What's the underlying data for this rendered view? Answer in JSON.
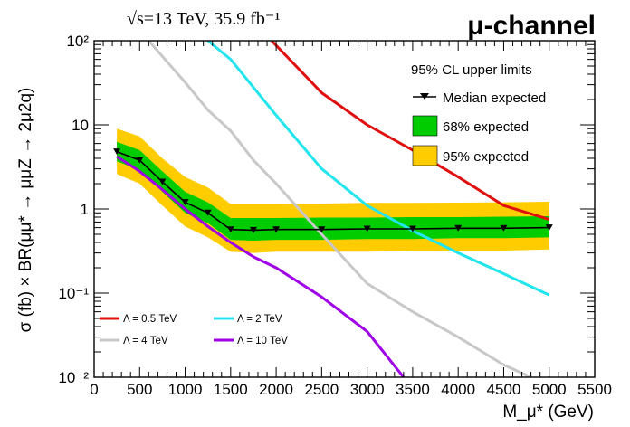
{
  "header": {
    "left_label": "√s=13 TeV, 35.9 fb⁻¹",
    "right_label": "μ-channel"
  },
  "chart_data": {
    "type": "line",
    "xlabel": "M_μ* (GeV)",
    "ylabel": "σ (fb) × BR(μμ* → μμZ → 2μ2q)",
    "xlim": [
      0,
      5500
    ],
    "ylim": [
      0.01,
      100
    ],
    "y_scale": "log",
    "x_ticks": [
      0,
      500,
      1000,
      1500,
      2000,
      2500,
      3000,
      3500,
      4000,
      4500,
      5000,
      5500
    ],
    "y_ticks": [
      {
        "value": 0.01,
        "label": "10⁻²"
      },
      {
        "value": 0.1,
        "label": "10⁻¹"
      },
      {
        "value": 1,
        "label": "1"
      },
      {
        "value": 10,
        "label": "10"
      },
      {
        "value": 100,
        "label": "10²"
      }
    ],
    "legend_title": "95% CL upper limits",
    "x": [
      250,
      500,
      750,
      1000,
      1250,
      1500,
      1750,
      2000,
      2500,
      3000,
      3500,
      4000,
      4500,
      5000
    ],
    "median_expected": [
      4.8,
      3.8,
      2.1,
      1.2,
      0.9,
      0.57,
      0.56,
      0.57,
      0.57,
      0.58,
      0.58,
      0.59,
      0.59,
      0.6
    ],
    "band_68": {
      "low": [
        3.7,
        2.9,
        1.6,
        0.9,
        0.68,
        0.43,
        0.42,
        0.43,
        0.43,
        0.44,
        0.44,
        0.45,
        0.45,
        0.46
      ],
      "high": [
        6.3,
        5.0,
        2.8,
        1.6,
        1.2,
        0.78,
        0.78,
        0.78,
        0.79,
        0.79,
        0.8,
        0.8,
        0.81,
        0.82
      ]
    },
    "band_95": {
      "low": [
        2.6,
        2.0,
        1.1,
        0.62,
        0.46,
        0.31,
        0.3,
        0.31,
        0.31,
        0.31,
        0.32,
        0.32,
        0.32,
        0.33
      ],
      "high": [
        9.0,
        7.3,
        4.0,
        2.4,
        1.8,
        1.15,
        1.15,
        1.15,
        1.16,
        1.18,
        1.18,
        1.19,
        1.2,
        1.22
      ]
    },
    "legend": [
      {
        "key": "median",
        "label": "Median expected"
      },
      {
        "key": "band68",
        "label": "68% expected"
      },
      {
        "key": "band95",
        "label": "95% expected"
      }
    ],
    "theory": [
      {
        "label": "Λ = 0.5 TeV",
        "color": "#e01010",
        "points": [
          [
            1950,
            100
          ],
          [
            2500,
            24
          ],
          [
            3000,
            10
          ],
          [
            3500,
            5.0
          ],
          [
            4000,
            2.4
          ],
          [
            4500,
            1.1
          ],
          [
            5000,
            0.75
          ]
        ]
      },
      {
        "label": "Λ = 2 TeV",
        "color": "#22e5ee",
        "points": [
          [
            1250,
            100
          ],
          [
            1500,
            60
          ],
          [
            2000,
            13
          ],
          [
            2500,
            3.0
          ],
          [
            3000,
            1.1
          ],
          [
            3500,
            0.55
          ],
          [
            4000,
            0.3
          ],
          [
            4500,
            0.17
          ],
          [
            5000,
            0.095
          ]
        ]
      },
      {
        "label": "Λ = 4 TeV",
        "color": "#c8c8c8",
        "points": [
          [
            600,
            100
          ],
          [
            1000,
            32
          ],
          [
            1250,
            15
          ],
          [
            1500,
            8.5
          ],
          [
            1750,
            3.8
          ],
          [
            2000,
            2.0
          ],
          [
            2500,
            0.5
          ],
          [
            3000,
            0.13
          ],
          [
            3500,
            0.06
          ],
          [
            4000,
            0.03
          ],
          [
            4500,
            0.014
          ],
          [
            4800,
            0.01
          ]
        ]
      },
      {
        "label": "Λ = 10 TeV",
        "color": "#a000e6",
        "points": [
          [
            250,
            4.2
          ],
          [
            500,
            2.8
          ],
          [
            750,
            1.7
          ],
          [
            1000,
            1.0
          ],
          [
            1250,
            0.62
          ],
          [
            1500,
            0.4
          ],
          [
            1750,
            0.27
          ],
          [
            2000,
            0.2
          ],
          [
            2500,
            0.09
          ],
          [
            3000,
            0.035
          ],
          [
            3400,
            0.01
          ]
        ]
      }
    ],
    "colors": {
      "band68": "#00cc00",
      "band95": "#ffcc00",
      "median": "#000000"
    }
  }
}
